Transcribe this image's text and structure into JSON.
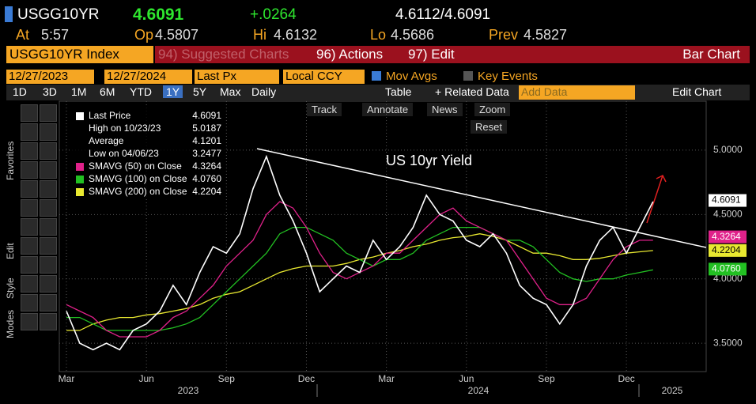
{
  "header": {
    "ticker": "USGG10YR",
    "last": "4.6091",
    "change": "+.0264",
    "bid_ask": "4.6112/4.6091",
    "quote": [
      {
        "label": "At",
        "value": "5:57"
      },
      {
        "label": "Op",
        "value": "4.5807"
      },
      {
        "label": "Hi",
        "value": "4.6132"
      },
      {
        "label": "Lo",
        "value": "4.5686"
      },
      {
        "label": "Prev",
        "value": "4.5827"
      }
    ]
  },
  "menu": {
    "security": "USGG10YR Index",
    "items": [
      "94) Suggested Charts",
      "96) Actions",
      "97) Edit"
    ],
    "chart_type": "Bar Chart"
  },
  "controls": {
    "start": "12/27/2023",
    "end": "12/27/2024",
    "field": "Last Px",
    "currency": "Local CCY",
    "mov_avgs": "Mov Avgs",
    "key_events": "Key Events"
  },
  "periods": [
    "1D",
    "3D",
    "1M",
    "6M",
    "YTD",
    "1Y",
    "5Y",
    "Max"
  ],
  "frequency": "Daily",
  "toolbar": {
    "table": "Table",
    "related": "Related Data",
    "add": "Add Data",
    "edit_chart": "Edit Chart"
  },
  "chart_tools": [
    "Track",
    "Annotate",
    "News",
    "Zoom",
    "Reset"
  ],
  "side_tabs": [
    "Favorites",
    "Edit",
    "Style",
    "Modes"
  ],
  "chart_data": {
    "type": "line",
    "title": "US 10yr Yield",
    "categories": [
      "Mar",
      null,
      null,
      null,
      null,
      null,
      "Jun",
      null,
      null,
      null,
      null,
      null,
      "Sep",
      null,
      null,
      null,
      null,
      null,
      "Dec",
      null,
      null,
      null,
      null,
      null,
      "Mar",
      null,
      null,
      null,
      null,
      null,
      "Jun",
      null,
      null,
      null,
      null,
      null,
      "Sep",
      null,
      null,
      null,
      null,
      null,
      "Dec",
      null,
      null
    ],
    "year_labels": [
      "2023",
      "2024",
      "2025"
    ],
    "series": [
      {
        "name": "Last Price",
        "color": "#ffffff",
        "last_label": "4.6091",
        "values": [
          3.75,
          3.5,
          3.45,
          3.5,
          3.45,
          3.6,
          3.65,
          3.75,
          3.95,
          3.8,
          4.05,
          4.25,
          4.2,
          4.35,
          4.7,
          4.95,
          4.65,
          4.45,
          4.2,
          3.9,
          4.0,
          4.1,
          4.05,
          4.3,
          4.15,
          4.25,
          4.4,
          4.65,
          4.5,
          4.45,
          4.3,
          4.25,
          4.35,
          4.2,
          3.95,
          3.85,
          3.8,
          3.65,
          3.8,
          4.1,
          4.3,
          4.4,
          4.2,
          4.4,
          4.6
        ]
      },
      {
        "name": "SMAVG (50)  on Close",
        "color": "#e0218a",
        "last_label": "4.3264",
        "values": [
          3.8,
          3.75,
          3.7,
          3.6,
          3.55,
          3.55,
          3.55,
          3.6,
          3.7,
          3.75,
          3.85,
          3.95,
          4.1,
          4.2,
          4.3,
          4.5,
          4.6,
          4.55,
          4.4,
          4.2,
          4.05,
          4.0,
          4.05,
          4.1,
          4.2,
          4.2,
          4.3,
          4.4,
          4.5,
          4.55,
          4.45,
          4.4,
          4.35,
          4.3,
          4.15,
          4.0,
          3.85,
          3.8,
          3.8,
          3.85,
          4.0,
          4.15,
          4.25,
          4.3,
          4.3
        ]
      },
      {
        "name": "SMAVG (100)  on Close",
        "color": "#22c022",
        "last_label": "4.0760",
        "values": [
          3.7,
          3.7,
          3.65,
          3.6,
          3.6,
          3.6,
          3.6,
          3.6,
          3.62,
          3.65,
          3.7,
          3.8,
          3.9,
          4.0,
          4.1,
          4.2,
          4.35,
          4.4,
          4.4,
          4.35,
          4.3,
          4.2,
          4.15,
          4.1,
          4.15,
          4.15,
          4.2,
          4.3,
          4.35,
          4.4,
          4.4,
          4.4,
          4.35,
          4.3,
          4.3,
          4.25,
          4.15,
          4.05,
          4.0,
          3.98,
          4.0,
          4.0,
          4.03,
          4.05,
          4.07
        ]
      },
      {
        "name": "SMAVG (200)  on Close",
        "color": "#e8e830",
        "last_label": "4.2204",
        "values": [
          3.6,
          3.6,
          3.65,
          3.68,
          3.7,
          3.7,
          3.72,
          3.73,
          3.75,
          3.77,
          3.8,
          3.85,
          3.88,
          3.9,
          3.95,
          4.0,
          4.05,
          4.08,
          4.1,
          4.1,
          4.1,
          4.12,
          4.15,
          4.17,
          4.2,
          4.22,
          4.25,
          4.27,
          4.3,
          4.32,
          4.33,
          4.35,
          4.33,
          4.3,
          4.25,
          4.2,
          4.2,
          4.18,
          4.15,
          4.15,
          4.16,
          4.18,
          4.2,
          4.21,
          4.22
        ]
      }
    ],
    "stats": [
      {
        "label": "High on 10/23/23",
        "value": "5.0187"
      },
      {
        "label": "Average",
        "value": "4.1201"
      },
      {
        "label": "Low on 04/06/23",
        "value": "3.2477"
      }
    ],
    "ylim": [
      3.28,
      5.38
    ],
    "yticks": [
      {
        "value": 3.5,
        "label": "3.5000"
      },
      {
        "value": 4.0,
        "label": "4.0000"
      },
      {
        "value": 4.5,
        "label": "4.5000"
      },
      {
        "value": 5.0,
        "label": "5.0000"
      }
    ],
    "grid": true
  }
}
